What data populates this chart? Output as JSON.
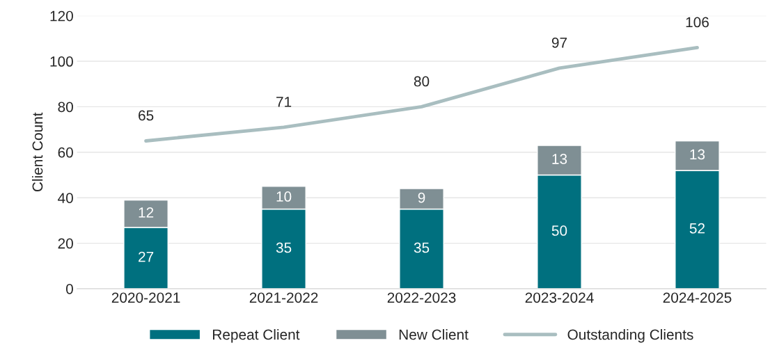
{
  "chart_data": {
    "type": "bar",
    "stacked": true,
    "ylabel": "Client Count",
    "categories": [
      "2020-2021",
      "2021-2022",
      "2022-2023",
      "2023-2024",
      "2024-2025"
    ],
    "series": [
      {
        "name": "Repeat Client",
        "color": "#00707f",
        "values": [
          27,
          35,
          35,
          50,
          52
        ]
      },
      {
        "name": "New Client",
        "color": "#7f8f94",
        "values": [
          12,
          10,
          9,
          13,
          13
        ]
      },
      {
        "name": "Outstanding Clients",
        "type": "line",
        "color": "#a9bec0",
        "values": [
          65,
          71,
          80,
          97,
          106
        ]
      }
    ],
    "ylim": [
      0,
      120
    ],
    "yticks": [
      0,
      20,
      40,
      60,
      80,
      100,
      120
    ],
    "grid": "y",
    "legend": "bottom",
    "data_labels": true
  }
}
